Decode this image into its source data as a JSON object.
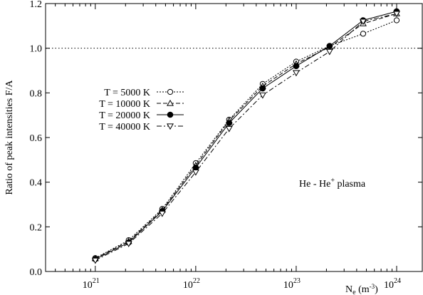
{
  "chart_data": {
    "type": "line",
    "title": "",
    "xlabel": "N",
    "xlabel_sub": "e",
    "xlabel_unit": " (m",
    "xlabel_unit_sup": "-3",
    "xlabel_unit_close": ")",
    "ylabel": "Ratio of peak intensities F/A",
    "x_scale": "log",
    "xlim": [
      3.2e+20,
      1.8e+24
    ],
    "ylim": [
      0,
      1.2
    ],
    "x_ticks": [
      {
        "value": 1e+21,
        "base": "10",
        "exp": "21"
      },
      {
        "value": 1e+22,
        "base": "10",
        "exp": "22"
      },
      {
        "value": 1e+23,
        "base": "10",
        "exp": "23"
      },
      {
        "value": 1e+24,
        "base": "10",
        "exp": "24"
      }
    ],
    "y_ticks": [
      "0.0",
      "0.2",
      "0.4",
      "0.6",
      "0.8",
      "1.0",
      "1.2"
    ],
    "y_tick_values": [
      0,
      0.2,
      0.4,
      0.6,
      0.8,
      1.0,
      1.2
    ],
    "reference_line": {
      "y": 1.0,
      "style": "dotted"
    },
    "annotation": {
      "text": "He - He",
      "sup": "+",
      "suffix": " plasma"
    },
    "legend_placement": "upper-left",
    "x": [
      1e+21,
      2.15e+21,
      4.64e+21,
      1e+22,
      2.15e+22,
      4.64e+22,
      1e+23,
      2.15e+23,
      4.64e+23,
      1e+24
    ],
    "series": [
      {
        "name": "T =  5000 K",
        "marker": "open-circle",
        "dash": "2,2",
        "values": [
          0.06,
          0.14,
          0.28,
          0.485,
          0.68,
          0.84,
          0.94,
          1.01,
          1.065,
          1.125
        ]
      },
      {
        "name": "T = 10000 K",
        "marker": "open-triangle-up",
        "dash": "6,3",
        "values": [
          0.058,
          0.135,
          0.275,
          0.475,
          0.675,
          0.83,
          0.93,
          1.005,
          1.11,
          1.155
        ]
      },
      {
        "name": "T = 20000 K",
        "marker": "filled-circle",
        "dash": "",
        "values": [
          0.055,
          0.13,
          0.27,
          0.465,
          0.665,
          0.82,
          0.92,
          1.01,
          1.125,
          1.165
        ]
      },
      {
        "name": "T = 40000 K",
        "marker": "open-triangle-down",
        "dash": "7,3,2,3",
        "values": [
          0.05,
          0.125,
          0.26,
          0.445,
          0.64,
          0.79,
          0.89,
          0.985,
          1.12,
          1.155
        ]
      }
    ]
  }
}
